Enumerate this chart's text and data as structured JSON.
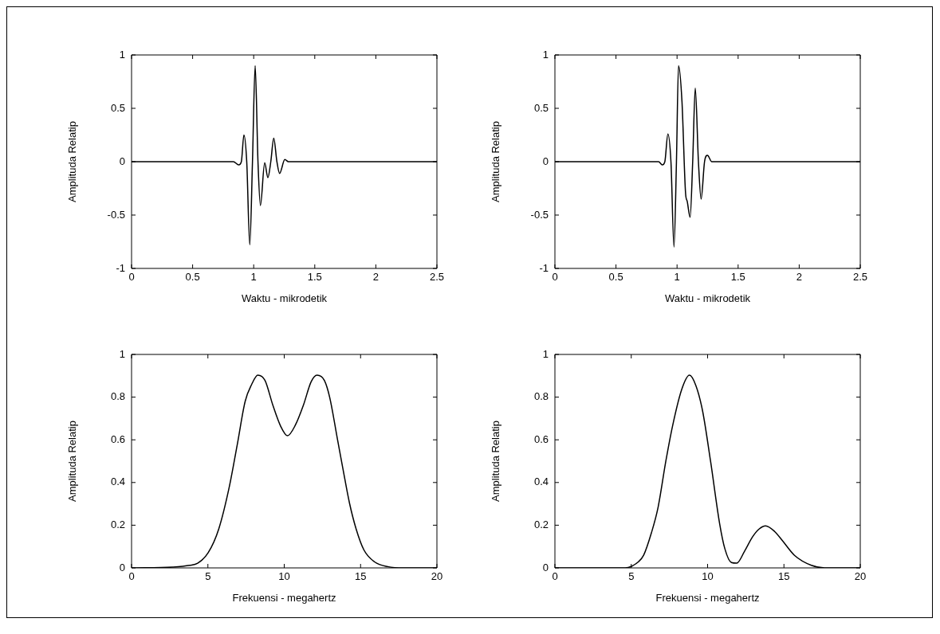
{
  "chart_data": [
    {
      "type": "line",
      "xlabel": "Waktu - mikrodetik",
      "ylabel": "Amplituda Relatip",
      "xlim": [
        0,
        2.5
      ],
      "xticks": [
        0,
        0.5,
        1,
        1.5,
        2,
        2.5
      ],
      "ylim": [
        -1,
        1
      ],
      "yticks": [
        -1,
        -0.5,
        0,
        0.5,
        1
      ],
      "grid": false,
      "legend": false,
      "marker": "none",
      "line_style": "solid",
      "color": "#000000",
      "x": [
        0,
        0.834,
        0.877,
        0.899,
        0.92,
        0.943,
        0.968,
        0.99,
        1.012,
        1.035,
        1.055,
        1.09,
        1.116,
        1.14,
        1.164,
        1.19,
        1.212,
        1.255,
        1.284,
        2.5
      ],
      "values": [
        0,
        0,
        -0.03,
        0,
        0.25,
        0,
        -0.78,
        0,
        0.9,
        0,
        -0.41,
        -0.01,
        -0.15,
        0,
        0.22,
        0,
        -0.11,
        0.02,
        0,
        0
      ]
    },
    {
      "type": "line",
      "xlabel": "Waktu - mikrodetik",
      "ylabel": "Amplituda Relatip",
      "xlim": [
        0,
        2.5
      ],
      "xticks": [
        0,
        0.5,
        1,
        1.5,
        2,
        2.5
      ],
      "ylim": [
        -1,
        1
      ],
      "yticks": [
        -1,
        -0.5,
        0,
        0.5,
        1
      ],
      "grid": false,
      "legend": false,
      "marker": "none",
      "line_style": "solid",
      "color": "#000000",
      "x": [
        0,
        0.849,
        0.879,
        0.9,
        0.925,
        0.95,
        0.975,
        0.995,
        1.012,
        1.04,
        1.07,
        1.083,
        1.107,
        1.128,
        1.149,
        1.175,
        1.197,
        1.225,
        1.249,
        1.284,
        2.5
      ],
      "values": [
        0,
        0,
        -0.03,
        0,
        0.26,
        0,
        -0.8,
        0,
        0.9,
        0.57,
        -0.3,
        -0.37,
        -0.52,
        0,
        0.69,
        0,
        -0.35,
        0,
        0.06,
        0,
        0
      ]
    },
    {
      "type": "line",
      "xlabel": "Frekuensi - megahertz",
      "ylabel": "Amplituda Relatip",
      "xlim": [
        0,
        20
      ],
      "xticks": [
        0,
        5,
        10,
        15,
        20
      ],
      "ylim": [
        0,
        1
      ],
      "yticks": [
        0,
        0.2,
        0.4,
        0.6,
        0.8,
        1
      ],
      "grid": false,
      "legend": false,
      "marker": "none",
      "line_style": "solid",
      "color": "#000000",
      "x": [
        0,
        2.68,
        3.81,
        4.33,
        5.02,
        5.71,
        6.4,
        6.92,
        7.44,
        7.87,
        8.27,
        8.74,
        9.26,
        9.77,
        10.21,
        10.73,
        11.25,
        11.76,
        12.15,
        12.63,
        12.98,
        13.49,
        13.84,
        14.27,
        14.71,
        15.22,
        15.92,
        16.78,
        17.82,
        20
      ],
      "values": [
        0,
        0.004,
        0.012,
        0.022,
        0.071,
        0.182,
        0.379,
        0.576,
        0.78,
        0.86,
        0.903,
        0.878,
        0.761,
        0.663,
        0.619,
        0.669,
        0.761,
        0.872,
        0.903,
        0.878,
        0.798,
        0.601,
        0.466,
        0.305,
        0.182,
        0.084,
        0.028,
        0.006,
        0,
        0
      ]
    },
    {
      "type": "line",
      "xlabel": "Frekuensi - megahertz",
      "ylabel": "Amplituda Relatip",
      "xlim": [
        0,
        20
      ],
      "xticks": [
        0,
        5,
        10,
        15,
        20
      ],
      "ylim": [
        0,
        1
      ],
      "yticks": [
        0,
        0.2,
        0.4,
        0.6,
        0.8,
        1
      ],
      "grid": false,
      "legend": false,
      "marker": "none",
      "line_style": "solid",
      "color": "#000000",
      "x": [
        0,
        4.6,
        5.46,
        5.81,
        6.32,
        6.75,
        7.27,
        7.7,
        8.3,
        8.81,
        9.24,
        9.67,
        10.19,
        10.79,
        11.13,
        11.56,
        11.91,
        12.42,
        12.94,
        13.37,
        13.8,
        14.4,
        14.91,
        15.69,
        16.8,
        17.66,
        20
      ],
      "values": [
        0,
        0,
        0.028,
        0.059,
        0.164,
        0.281,
        0.502,
        0.663,
        0.835,
        0.903,
        0.853,
        0.736,
        0.502,
        0.207,
        0.09,
        0.025,
        0.022,
        0.078,
        0.145,
        0.182,
        0.197,
        0.17,
        0.127,
        0.059,
        0.012,
        0,
        0
      ]
    }
  ]
}
